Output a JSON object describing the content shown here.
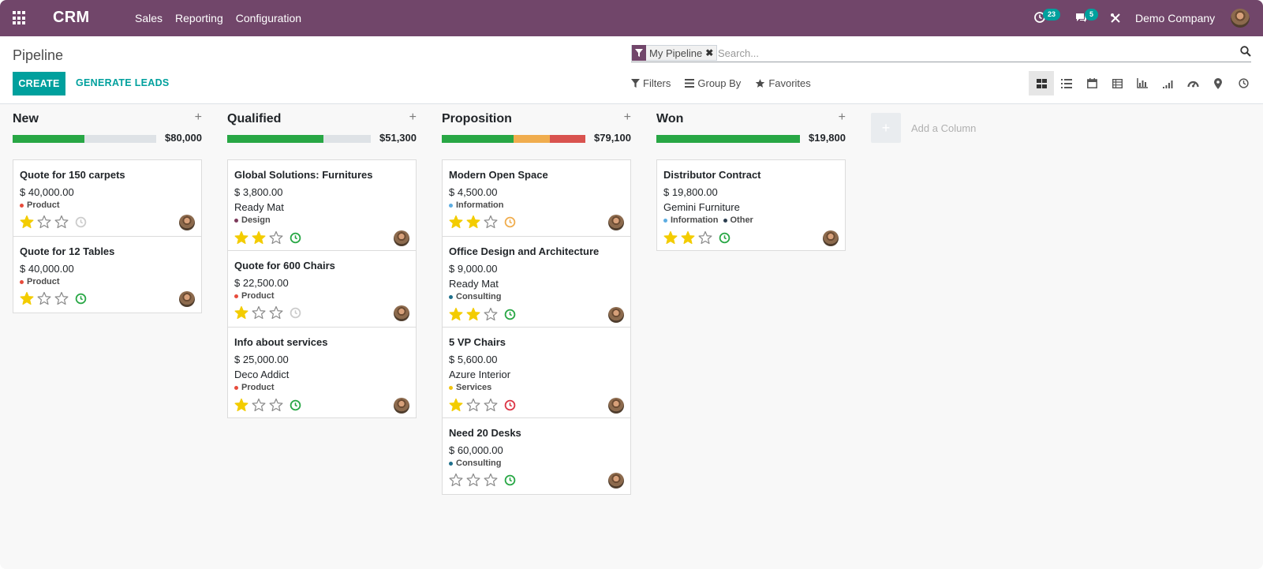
{
  "navbar": {
    "brand": "CRM",
    "menu": [
      "Sales",
      "Reporting",
      "Configuration"
    ],
    "activity_count": "23",
    "message_count": "5",
    "company": "Demo Company",
    "bg_color": "#71466a"
  },
  "control_panel": {
    "breadcrumb": "Pipeline",
    "facet_label": "My Pipeline",
    "search_placeholder": "Search...",
    "create_label": "CREATE",
    "generate_label": "GENERATE LEADS",
    "filters_label": "Filters",
    "groupby_label": "Group By",
    "favorites_label": "Favorites",
    "views": [
      "kanban",
      "list",
      "calendar",
      "pivot",
      "graph",
      "cohort",
      "dashboard",
      "map",
      "activity"
    ],
    "active_view": "kanban"
  },
  "colors": {
    "accent": "#00a09d",
    "star": "#f3cc00",
    "progress_green": "#28a745",
    "progress_orange": "#f0ad4e",
    "progress_red": "#d9534f",
    "progress_empty": "#dee2e6",
    "activity_planned": "#28a745",
    "activity_today": "#f0ad4e",
    "activity_overdue": "#dc3545",
    "activity_none": "#cccccc"
  },
  "columns": [
    {
      "title": "New",
      "total": "$80,000",
      "progress": [
        {
          "color": "green",
          "fraction": 0.5
        }
      ],
      "cards": [
        {
          "name": "Quote for 150 carpets",
          "amount": "$ 40,000.00",
          "partner": "",
          "tags": [
            {
              "label": "Product",
              "color": "#e74c3c"
            }
          ],
          "stars": 1,
          "activity": "none"
        },
        {
          "name": "Quote for 12 Tables",
          "amount": "$ 40,000.00",
          "partner": "",
          "tags": [
            {
              "label": "Product",
              "color": "#e74c3c"
            }
          ],
          "stars": 1,
          "activity": "planned"
        }
      ]
    },
    {
      "title": "Qualified",
      "total": "$51,300",
      "progress": [
        {
          "color": "green",
          "fraction": 0.67
        }
      ],
      "cards": [
        {
          "name": "Global Solutions: Furnitures",
          "amount": "$ 3,800.00",
          "partner": "Ready Mat",
          "tags": [
            {
              "label": "Design",
              "color": "#7c3a5b"
            }
          ],
          "stars": 2,
          "activity": "planned"
        },
        {
          "name": "Quote for 600 Chairs",
          "amount": "$ 22,500.00",
          "partner": "",
          "tags": [
            {
              "label": "Product",
              "color": "#e74c3c"
            }
          ],
          "stars": 1,
          "activity": "none"
        },
        {
          "name": "Info about services",
          "amount": "$ 25,000.00",
          "partner": "Deco Addict",
          "tags": [
            {
              "label": "Product",
              "color": "#e74c3c"
            }
          ],
          "stars": 1,
          "activity": "planned"
        }
      ]
    },
    {
      "title": "Proposition",
      "total": "$79,100",
      "progress": [
        {
          "color": "green",
          "fraction": 0.5
        },
        {
          "color": "orange",
          "fraction": 0.25
        },
        {
          "color": "red",
          "fraction": 0.25
        }
      ],
      "cards": [
        {
          "name": "Modern Open Space",
          "amount": "$ 4,500.00",
          "partner": "",
          "tags": [
            {
              "label": "Information",
              "color": "#5dade2"
            }
          ],
          "stars": 2,
          "activity": "today"
        },
        {
          "name": "Office Design and Architecture",
          "amount": "$ 9,000.00",
          "partner": "Ready Mat",
          "tags": [
            {
              "label": "Consulting",
              "color": "#1f6f8b"
            }
          ],
          "stars": 2,
          "activity": "planned"
        },
        {
          "name": "5 VP Chairs",
          "amount": "$ 5,600.00",
          "partner": "Azure Interior",
          "tags": [
            {
              "label": "Services",
              "color": "#f1c40f"
            }
          ],
          "stars": 1,
          "activity": "overdue"
        },
        {
          "name": "Need 20 Desks",
          "amount": "$ 60,000.00",
          "partner": "",
          "tags": [
            {
              "label": "Consulting",
              "color": "#1f6f8b"
            }
          ],
          "stars": 0,
          "activity": "planned"
        }
      ]
    },
    {
      "title": "Won",
      "total": "$19,800",
      "progress": [
        {
          "color": "green",
          "fraction": 1.0
        }
      ],
      "cards": [
        {
          "name": "Distributor Contract",
          "amount": "$ 19,800.00",
          "partner": "Gemini Furniture",
          "tags": [
            {
              "label": "Information",
              "color": "#5dade2"
            },
            {
              "label": "Other",
              "color": "#2c3e50"
            }
          ],
          "stars": 2,
          "activity": "planned"
        }
      ]
    }
  ],
  "add_column_label": "Add a Column"
}
